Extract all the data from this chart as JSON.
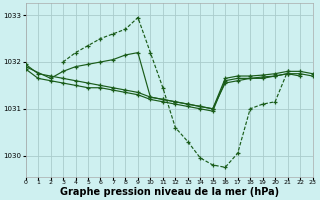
{
  "background_color": "#cef0f0",
  "grid_color": "#aacccc",
  "line_color": "#1a5c1a",
  "xlabel": "Graphe pression niveau de la mer (hPa)",
  "xlabel_fontsize": 7,
  "xlim": [
    0,
    23
  ],
  "ylim": [
    1029.55,
    1033.25
  ],
  "yticks": [
    1030,
    1031,
    1032,
    1033
  ],
  "xticks": [
    0,
    1,
    2,
    3,
    4,
    5,
    6,
    7,
    8,
    9,
    10,
    11,
    12,
    13,
    14,
    15,
    16,
    17,
    18,
    19,
    20,
    21,
    22,
    23
  ],
  "line1_x": [
    0,
    1,
    2,
    3,
    4,
    5,
    6,
    7,
    8,
    9,
    10,
    11,
    12,
    13,
    14,
    15,
    16,
    17,
    18,
    19,
    20,
    21,
    22,
    23
  ],
  "line1_y": [
    1031.95,
    1031.75,
    1031.7,
    1031.65,
    1031.6,
    1031.55,
    1031.5,
    1031.45,
    1031.4,
    1031.35,
    1031.25,
    1031.2,
    1031.15,
    1031.1,
    1031.05,
    1031.0,
    1031.65,
    1031.7,
    1031.7,
    1031.72,
    1031.75,
    1031.8,
    1031.8,
    1031.75
  ],
  "line2_x": [
    0,
    1,
    2,
    3,
    4,
    5,
    6,
    7,
    8,
    9,
    10,
    11,
    12,
    13,
    14,
    15,
    16,
    17,
    18,
    19,
    20,
    21,
    22,
    23
  ],
  "line2_y": [
    1031.85,
    1031.65,
    1031.6,
    1031.55,
    1031.5,
    1031.45,
    1031.45,
    1031.4,
    1031.35,
    1031.3,
    1031.2,
    1031.15,
    1031.1,
    1031.05,
    1031.0,
    1030.95,
    1031.6,
    1031.65,
    1031.65,
    1031.68,
    1031.7,
    1031.75,
    1031.75,
    1031.7
  ],
  "line3_x": [
    0,
    2,
    3,
    4,
    5,
    6,
    7,
    8,
    9,
    10,
    11,
    12,
    13,
    14,
    15,
    16,
    17,
    18,
    19,
    20,
    21,
    22
  ],
  "line3_y": [
    1031.9,
    1031.65,
    1031.8,
    1031.9,
    1031.95,
    1032.0,
    1032.05,
    1032.15,
    1032.2,
    1031.25,
    1031.2,
    1031.15,
    1031.1,
    1031.05,
    1031.0,
    1031.55,
    1031.6,
    1031.65,
    1031.65,
    1031.7,
    1031.75,
    1031.7
  ],
  "line4_x": [
    3,
    4,
    5,
    6,
    7,
    8,
    9,
    10,
    11,
    12,
    13,
    14,
    15,
    16,
    17,
    18,
    19,
    20,
    21
  ],
  "line4_y": [
    1032.0,
    1032.2,
    1032.35,
    1032.5,
    1032.6,
    1032.7,
    1032.95,
    1032.2,
    1031.45,
    1030.6,
    1030.3,
    1029.95,
    1029.8,
    1029.75,
    1030.05,
    1031.0,
    1031.1,
    1031.15,
    1031.8
  ]
}
